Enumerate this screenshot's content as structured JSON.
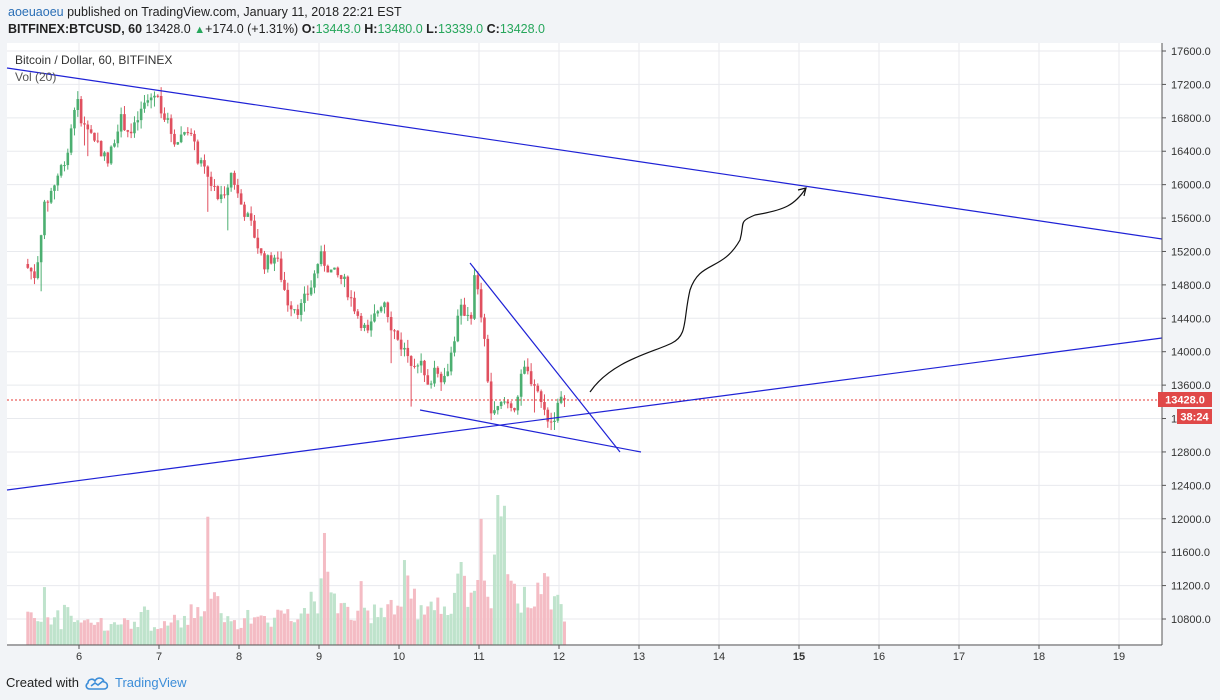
{
  "header": {
    "user": "aoeuaoeu",
    "published_text": "published on TradingView.com, January 11, 2018 22:21 EST",
    "symbol": "BITFINEX:BTCUSD, 60",
    "last": "13428.0",
    "change": "+174.0 (+1.31%)",
    "o_label": "O:",
    "o": "13443.0",
    "h_label": "H:",
    "h": "13480.0",
    "l_label": "L:",
    "l": "13339.0",
    "c_label": "C:",
    "c": "13428.0"
  },
  "footer": {
    "created_with": "Created with",
    "brand": "TradingView"
  },
  "chart_data": {
    "type": "candlestick",
    "title": "Bitcoin / Dollar, 60, BITFINEX",
    "indicator": "Vol (20)",
    "x_tick_labels": [
      "6",
      "7",
      "8",
      "9",
      "10",
      "11",
      "12",
      "13",
      "14",
      "15",
      "16",
      "17",
      "18",
      "19"
    ],
    "y_ticks": [
      10800,
      11200,
      11600,
      12000,
      12400,
      12800,
      13200,
      13600,
      14000,
      14400,
      14800,
      15200,
      15600,
      16000,
      16400,
      16800,
      17200,
      17600
    ],
    "y_tick_labels_visible": [
      "10800.0",
      "11200.0",
      "11600.0",
      "12000.0",
      "12400.0",
      "12800.0",
      "13600.0",
      "14000.0",
      "14400.0",
      "14800.0",
      "15200.0",
      "15600.0",
      "16000.0",
      "16400.0",
      "16800.0",
      "17200.0",
      "17600.0"
    ],
    "ylim": [
      10500,
      17750
    ],
    "last_price_label": "13428.0",
    "countdown_label": "38:24",
    "price_path": [
      [
        5.36,
        15050
      ],
      [
        5.5,
        14900
      ],
      [
        5.6,
        15700
      ],
      [
        5.75,
        16050
      ],
      [
        5.9,
        16400
      ],
      [
        6.0,
        17050
      ],
      [
        6.1,
        16700
      ],
      [
        6.25,
        16550
      ],
      [
        6.4,
        16250
      ],
      [
        6.55,
        16800
      ],
      [
        6.7,
        16600
      ],
      [
        6.85,
        16950
      ],
      [
        7.0,
        17100
      ],
      [
        7.1,
        16850
      ],
      [
        7.25,
        16500
      ],
      [
        7.4,
        16700
      ],
      [
        7.55,
        16250
      ],
      [
        7.7,
        16000
      ],
      [
        7.8,
        15800
      ],
      [
        7.95,
        16150
      ],
      [
        8.05,
        15800
      ],
      [
        8.2,
        15500
      ],
      [
        8.35,
        15050
      ],
      [
        8.5,
        15150
      ],
      [
        8.65,
        14600
      ],
      [
        8.8,
        14500
      ],
      [
        8.95,
        14800
      ],
      [
        9.05,
        15150
      ],
      [
        9.2,
        14950
      ],
      [
        9.35,
        14850
      ],
      [
        9.5,
        14500
      ],
      [
        9.65,
        14200
      ],
      [
        9.75,
        14450
      ],
      [
        9.85,
        14650
      ],
      [
        9.95,
        14300
      ],
      [
        10.05,
        14100
      ],
      [
        10.2,
        13900
      ],
      [
        10.3,
        13900
      ],
      [
        10.4,
        13550
      ],
      [
        10.5,
        13850
      ],
      [
        10.6,
        13650
      ],
      [
        10.7,
        14000
      ],
      [
        10.8,
        14500
      ],
      [
        10.95,
        14450
      ],
      [
        10.98,
        14900
      ],
      [
        11.05,
        14600
      ],
      [
        11.12,
        14000
      ],
      [
        11.2,
        13200
      ],
      [
        11.35,
        13400
      ],
      [
        11.5,
        13350
      ],
      [
        11.6,
        13800
      ],
      [
        11.75,
        13600
      ],
      [
        11.85,
        13300
      ],
      [
        11.95,
        13150
      ],
      [
        12.05,
        13400
      ]
    ],
    "last_candle": {
      "o": 13443.0,
      "h": 13480.0,
      "l": 13339.0,
      "c": 13428.0
    },
    "volume_profile": [
      0.23,
      0.18,
      0.16,
      0.35,
      0.22,
      0.15,
      0.2,
      0.14,
      0.21,
      0.17,
      0.12,
      0.16,
      0.18,
      0.14,
      0.12,
      0.19,
      0.15,
      0.11,
      0.13,
      0.16,
      0.15,
      0.22,
      0.18,
      0.14,
      0.12,
      0.17,
      0.2,
      0.13,
      0.15,
      0.12,
      0.18,
      0.16,
      0.2,
      0.17,
      0.14,
      0.16,
      0.22,
      0.19,
      0.24,
      0.26,
      0.95,
      0.33,
      0.26,
      0.22,
      0.18,
      0.16,
      0.2,
      0.15,
      0.14,
      0.18,
      0.2,
      0.17,
      0.22,
      0.19,
      0.16,
      0.18,
      0.24,
      0.22,
      0.21,
      0.17,
      0.24,
      0.28,
      0.22,
      0.34,
      0.3,
      0.35,
      0.62,
      0.4,
      0.33,
      0.28,
      0.25,
      0.22,
      0.2,
      0.18,
      0.33,
      0.24,
      0.2,
      0.28,
      0.22,
      0.25,
      0.27,
      0.3,
      0.24,
      0.28,
      0.5,
      0.36,
      0.3,
      0.22,
      0.26,
      0.24,
      0.28,
      0.3,
      0.22,
      0.2,
      0.26,
      0.3,
      0.55,
      0.44,
      0.32,
      0.3,
      0.36,
      0.72,
      0.4,
      0.34,
      0.85,
      1.0,
      0.8,
      0.46,
      0.4,
      0.32,
      0.28,
      0.35,
      0.3,
      0.27,
      0.38,
      0.45,
      0.4,
      0.32,
      0.35,
      0.3,
      0.22
    ]
  }
}
